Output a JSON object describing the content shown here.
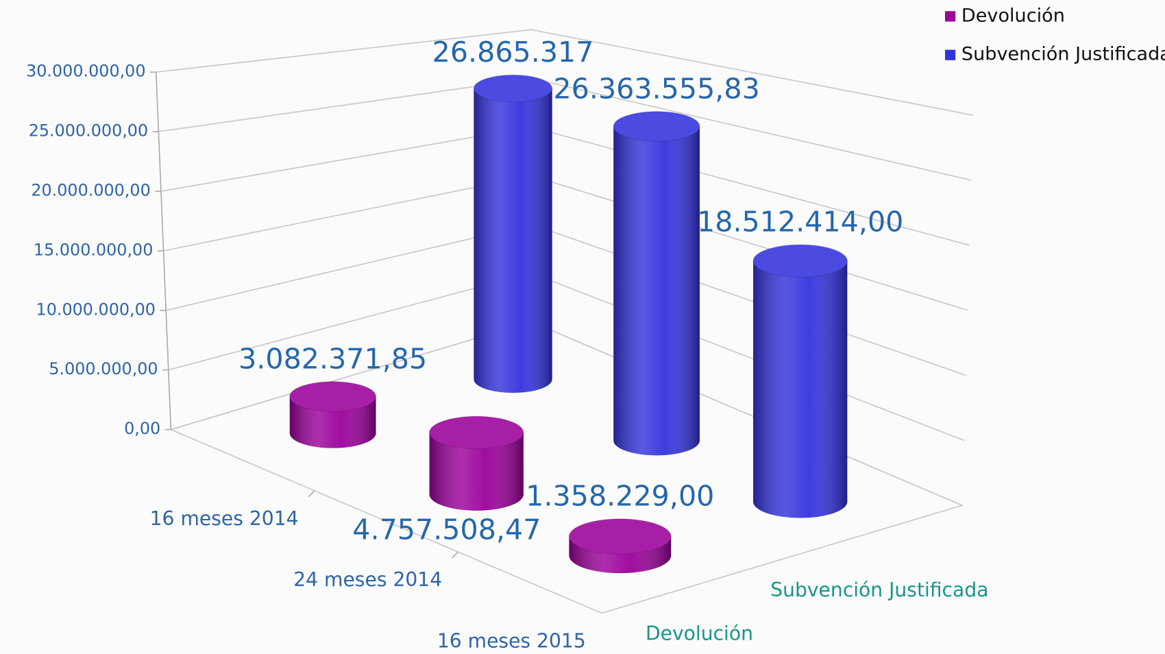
{
  "chart_data": {
    "type": "bar3d",
    "categories": [
      "16 meses 2014",
      "24  meses 2014",
      "16 meses 2015"
    ],
    "series": [
      {
        "name": "Devolución",
        "color": "#9b009b",
        "values": [
          3082371.85,
          4757508.47,
          1358229
        ],
        "value_labels": [
          "3.082.371,85",
          "4.757.508,47",
          "1.358.229,00"
        ]
      },
      {
        "name": "Subvención Justificada",
        "color": "#3333dd",
        "values": [
          26865317,
          26363555.83,
          18512414
        ],
        "value_labels": [
          "26.865.317",
          "26.363.555,83",
          "18.512.414,00"
        ]
      }
    ],
    "ylim": [
      0,
      30000000
    ],
    "yticks": [
      {
        "value": 0,
        "label": "0,00"
      },
      {
        "value": 5000000,
        "label": "5.000.000,00"
      },
      {
        "value": 10000000,
        "label": "10.000.000,00"
      },
      {
        "value": 15000000,
        "label": "15.000.000,00"
      },
      {
        "value": 20000000,
        "label": "20.000.000,00"
      },
      {
        "value": 25000000,
        "label": "25.000.000,00"
      },
      {
        "value": 30000000,
        "label": "30.000.000,00"
      }
    ],
    "grid": true,
    "legend": "top-right"
  }
}
